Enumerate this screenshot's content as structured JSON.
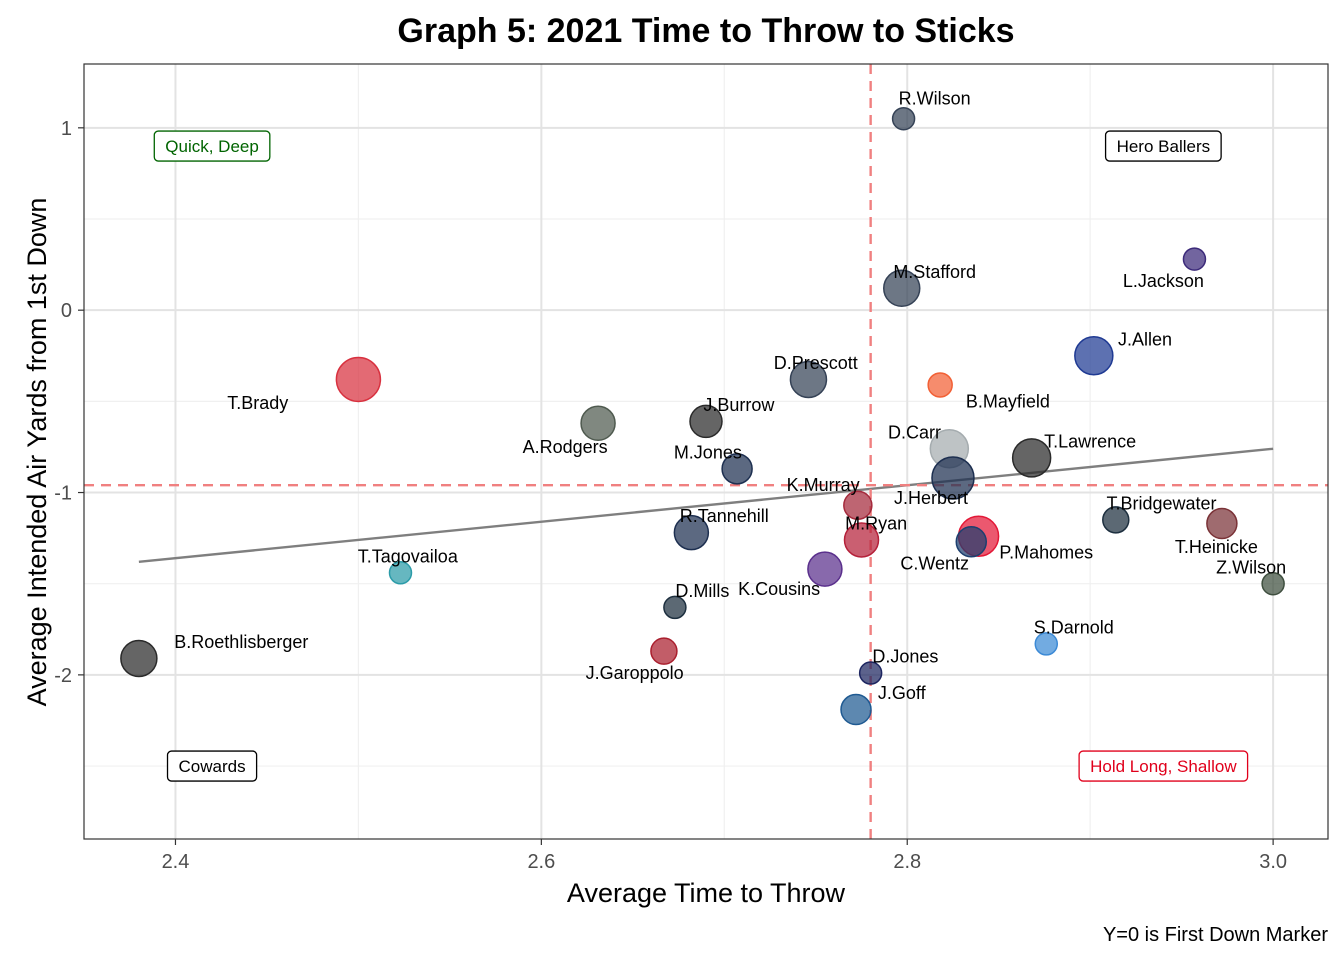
{
  "chart_data": {
    "type": "scatter",
    "title": "Graph 5: 2021 Time to Throw to Sticks",
    "xlabel": "Average Time to Throw",
    "ylabel": "Average Intended Air Yards from 1st Down",
    "caption": "Y=0 is First Down Marker",
    "xlim": [
      2.35,
      3.03
    ],
    "ylim": [
      -2.9,
      1.35
    ],
    "x_ticks": [
      2.4,
      2.6,
      2.8,
      3.0
    ],
    "x_tick_labels": [
      "2.4",
      "2.6",
      "2.8",
      "3.0"
    ],
    "y_ticks": [
      1,
      0,
      -1,
      -2
    ],
    "y_tick_labels": [
      "1",
      "0",
      "-1",
      "-2"
    ],
    "grid": true,
    "vline": 2.78,
    "hline": -0.96,
    "trend_line": {
      "x": [
        2.38,
        3.0
      ],
      "y": [
        -1.38,
        -0.76
      ]
    },
    "quadrant_labels": [
      {
        "text": "Quick, Deep",
        "x": 2.42,
        "y": 0.9,
        "color": "#006400"
      },
      {
        "text": "Hero Ballers",
        "x": 2.94,
        "y": 0.9,
        "color": "#000000"
      },
      {
        "text": "Cowards",
        "x": 2.42,
        "y": -2.5,
        "color": "#000000"
      },
      {
        "text": "Hold Long, Shallow",
        "x": 2.94,
        "y": -2.5,
        "color": "#e0001b"
      }
    ],
    "points": [
      {
        "label": "R.Wilson",
        "x": 2.798,
        "y": 1.05,
        "size": 11,
        "color": "#354256",
        "lx": 2.815,
        "ly": 1.16
      },
      {
        "label": "L.Jackson",
        "x": 2.957,
        "y": 0.28,
        "size": 11,
        "color": "#3c2a7a",
        "lx": 2.94,
        "ly": 0.16
      },
      {
        "label": "M.Stafford",
        "x": 2.797,
        "y": 0.12,
        "size": 18,
        "color": "#354256",
        "lx": 2.815,
        "ly": 0.21
      },
      {
        "label": "J.Allen",
        "x": 2.902,
        "y": -0.25,
        "size": 19,
        "color": "#1f3a93",
        "lx": 2.93,
        "ly": -0.16
      },
      {
        "label": "T.Brady",
        "x": 2.5,
        "y": -0.38,
        "size": 22,
        "color": "#d8313f",
        "lx": 2.445,
        "ly": -0.51
      },
      {
        "label": "D.Prescott",
        "x": 2.746,
        "y": -0.38,
        "size": 18,
        "color": "#354256",
        "lx": 2.75,
        "ly": -0.29
      },
      {
        "label": "B.Mayfield",
        "x": 2.818,
        "y": -0.41,
        "size": 12,
        "color": "#f26035",
        "lx": 2.855,
        "ly": -0.5
      },
      {
        "label": "A.Rodgers",
        "x": 2.631,
        "y": -0.62,
        "size": 17,
        "color": "#4f5a4f",
        "lx": 2.613,
        "ly": -0.75
      },
      {
        "label": "J.Burrow",
        "x": 2.69,
        "y": -0.61,
        "size": 16,
        "color": "#2a2a2a",
        "lx": 2.708,
        "ly": -0.52
      },
      {
        "label": "D.Carr",
        "x": 2.823,
        "y": -0.76,
        "size": 19,
        "color": "#a5acaf",
        "lx": 2.804,
        "ly": -0.67
      },
      {
        "label": "T.Lawrence",
        "x": 2.868,
        "y": -0.81,
        "size": 19,
        "color": "#2a2a2a",
        "lx": 2.9,
        "ly": -0.72
      },
      {
        "label": "M.Jones",
        "x": 2.707,
        "y": -0.87,
        "size": 15,
        "color": "#1d2f50",
        "lx": 2.691,
        "ly": -0.78
      },
      {
        "label": "J.Herbert",
        "x": 2.825,
        "y": -0.92,
        "size": 21,
        "color": "#1d2f50",
        "lx": 2.813,
        "ly": -1.03
      },
      {
        "label": "K.Murray",
        "x": 2.773,
        "y": -1.07,
        "size": 14,
        "color": "#a52a3c",
        "lx": 2.754,
        "ly": -0.96
      },
      {
        "label": "T.Bridgewater",
        "x": 2.914,
        "y": -1.15,
        "size": 13,
        "color": "#1d2f3f",
        "lx": 2.939,
        "ly": -1.06
      },
      {
        "label": "T.Heinicke",
        "x": 2.972,
        "y": -1.17,
        "size": 15,
        "color": "#7a3237",
        "lx": 2.969,
        "ly": -1.3
      },
      {
        "label": "R.Tannehill",
        "x": 2.682,
        "y": -1.22,
        "size": 17,
        "color": "#1d2f50",
        "lx": 2.7,
        "ly": -1.13
      },
      {
        "label": "P.Mahomes",
        "x": 2.839,
        "y": -1.24,
        "size": 20,
        "color": "#e31837",
        "lx": 2.876,
        "ly": -1.33
      },
      {
        "label": "C.Wentz",
        "x": 2.835,
        "y": -1.27,
        "size": 15,
        "color": "#1d3f6f",
        "lx": 2.815,
        "ly": -1.39
      },
      {
        "label": "M.Ryan",
        "x": 2.775,
        "y": -1.26,
        "size": 17,
        "color": "#b5213a",
        "lx": 2.783,
        "ly": -1.17
      },
      {
        "label": "T.Tagovailoa",
        "x": 2.523,
        "y": -1.44,
        "size": 11,
        "color": "#2b9ba8",
        "lx": 2.527,
        "ly": -1.35
      },
      {
        "label": "K.Cousins",
        "x": 2.755,
        "y": -1.42,
        "size": 17,
        "color": "#5a2f8c",
        "lx": 2.73,
        "ly": -1.53
      },
      {
        "label": "Z.Wilson",
        "x": 3.0,
        "y": -1.5,
        "size": 11,
        "color": "#3f4f3f",
        "lx": 2.988,
        "ly": -1.41
      },
      {
        "label": "D.Mills",
        "x": 2.673,
        "y": -1.63,
        "size": 11,
        "color": "#1d2f3f",
        "lx": 2.688,
        "ly": -1.54
      },
      {
        "label": "S.Darnold",
        "x": 2.876,
        "y": -1.83,
        "size": 11,
        "color": "#3c8ad6",
        "lx": 2.891,
        "ly": -1.74
      },
      {
        "label": "B.Roethlisberger",
        "x": 2.38,
        "y": -1.91,
        "size": 18,
        "color": "#2a2a2a",
        "lx": 2.436,
        "ly": -1.82
      },
      {
        "label": "J.Garoppolo",
        "x": 2.667,
        "y": -1.87,
        "size": 13,
        "color": "#aa1f2e",
        "lx": 2.651,
        "ly": -1.99
      },
      {
        "label": "D.Jones",
        "x": 2.78,
        "y": -1.99,
        "size": 11,
        "color": "#1d2560",
        "lx": 2.799,
        "ly": -1.9
      },
      {
        "label": "J.Goff",
        "x": 2.772,
        "y": -2.19,
        "size": 15,
        "color": "#1f5a92",
        "lx": 2.797,
        "ly": -2.1
      }
    ]
  }
}
